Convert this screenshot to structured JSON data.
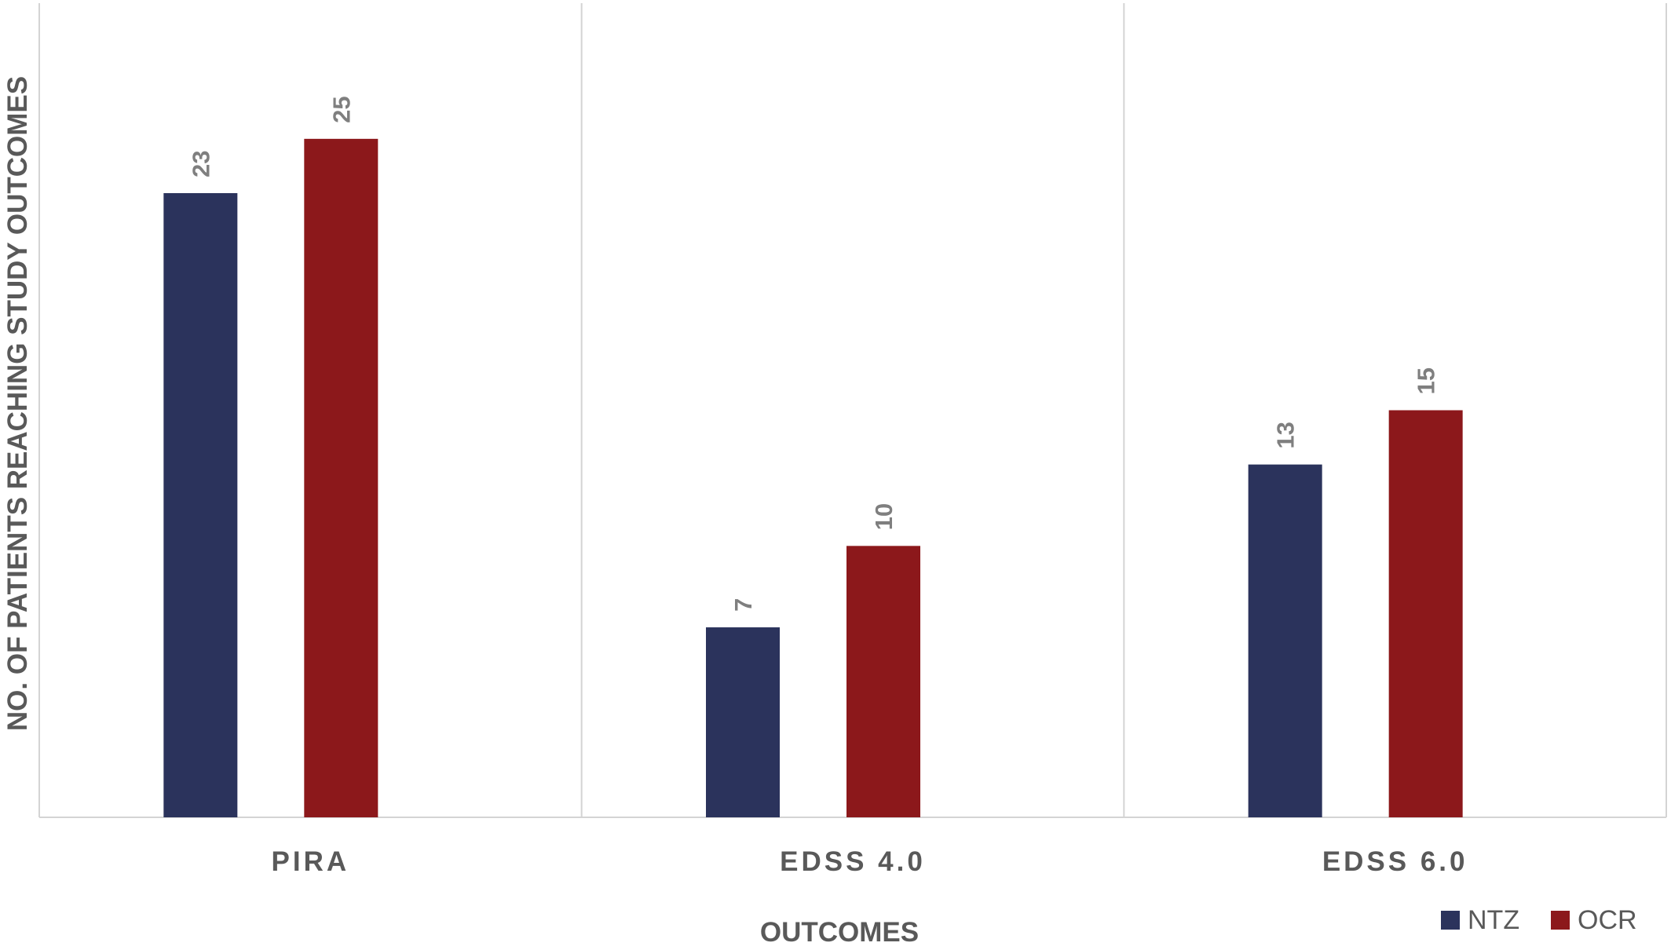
{
  "chart_data": {
    "type": "bar",
    "title": "",
    "xlabel": "OUTCOMES",
    "ylabel": "NO. OF PATIENTS REACHING STUDY OUTCOMES",
    "categories": [
      "PIRA",
      "EDSS 4.0",
      "EDSS 6.0"
    ],
    "series": [
      {
        "name": "NTZ",
        "values": [
          23,
          7,
          13
        ],
        "color": "#2b335c"
      },
      {
        "name": "OCR",
        "values": [
          25,
          10,
          15
        ],
        "color": "#8c181b"
      }
    ],
    "ylim": [
      0,
      30
    ],
    "grid": "vertical category separators",
    "legend_position": "bottom-right",
    "data_labels": true,
    "colors": {
      "axis": "#d4d4d4",
      "label_text": "#595959",
      "value_text": "#7f7f7f"
    }
  }
}
